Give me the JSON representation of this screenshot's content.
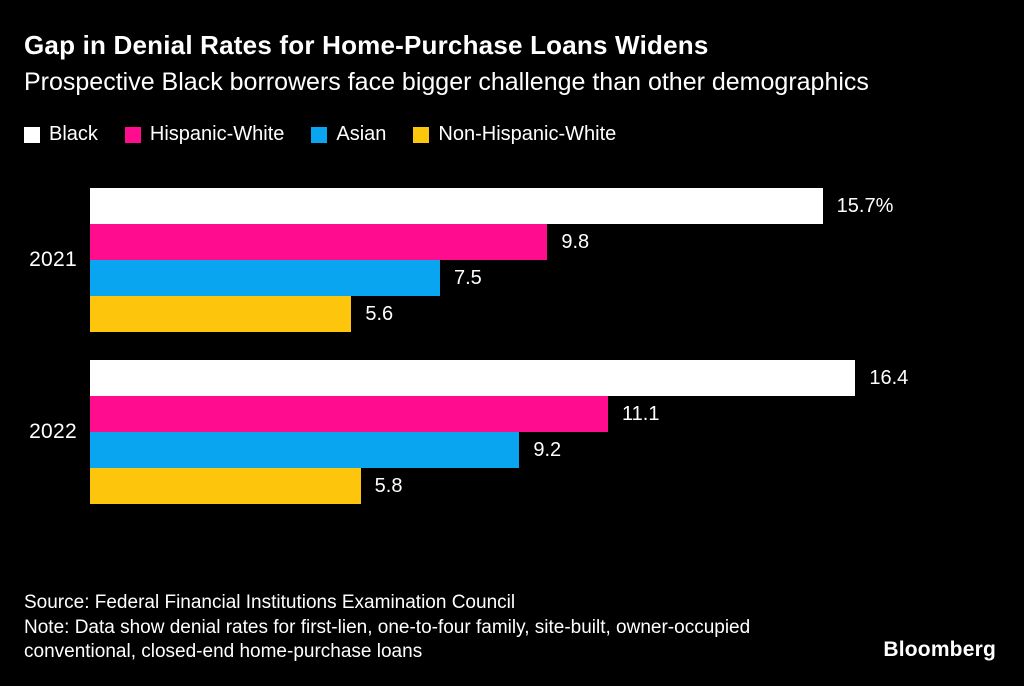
{
  "header": {
    "title": "Gap in Denial Rates for Home-Purchase Loans Widens",
    "subtitle": "Prospective Black borrowers face bigger challenge than other demographics"
  },
  "colors": {
    "background": "#000000",
    "text": "#ffffff",
    "series_black": "#ffffff",
    "series_hispanic_white": "#ff0d8e",
    "series_asian": "#0aa5f0",
    "series_non_hispanic_white": "#fdc50c"
  },
  "chart_data": {
    "type": "bar",
    "orientation": "horizontal",
    "title": "Gap in Denial Rates for Home-Purchase Loans Widens",
    "subtitle": "Prospective Black borrowers face bigger challenge than other demographics",
    "categories": [
      "2021",
      "2022"
    ],
    "series": [
      {
        "name": "Black",
        "color": "#ffffff",
        "values": [
          15.7,
          16.4
        ],
        "value_labels": [
          "15.7%",
          "16.4"
        ]
      },
      {
        "name": "Hispanic-White",
        "color": "#ff0d8e",
        "values": [
          9.8,
          11.1
        ],
        "value_labels": [
          "9.8",
          "11.1"
        ]
      },
      {
        "name": "Asian",
        "color": "#0aa5f0",
        "values": [
          7.5,
          9.2
        ],
        "value_labels": [
          "7.5",
          "9.2"
        ]
      },
      {
        "name": "Non-Hispanic-White",
        "color": "#fdc50c",
        "values": [
          5.6,
          5.8
        ],
        "value_labels": [
          "5.6",
          "5.8"
        ]
      }
    ],
    "unit": "%",
    "xlim": [
      0,
      19.5
    ],
    "grid": false,
    "legend_position": "top",
    "value_labels_shown": true
  },
  "footer": {
    "source": "Source: Federal Financial Institutions Examination Council",
    "note": "Note: Data show denial rates for first-lien, one-to-four family, site-built, owner-occupied conventional, closed-end home-purchase loans",
    "brand": "Bloomberg"
  }
}
